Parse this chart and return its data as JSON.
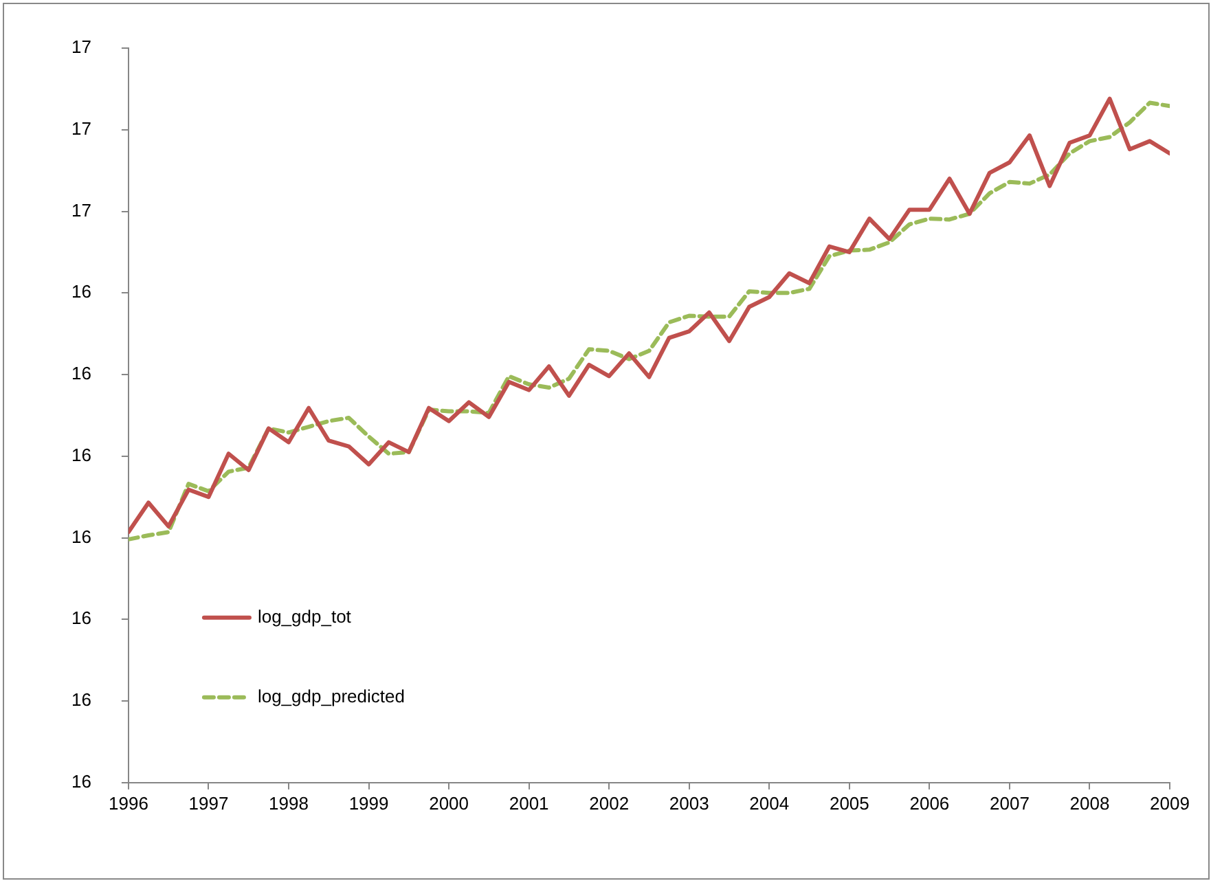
{
  "chart_data": {
    "type": "line",
    "x": [
      1996,
      1996.25,
      1996.5,
      1996.75,
      1997,
      1997.25,
      1997.5,
      1997.75,
      1998,
      1998.25,
      1998.5,
      1998.75,
      1999,
      1999.25,
      1999.5,
      1999.75,
      2000,
      2000.25,
      2000.5,
      2000.75,
      2001,
      2001.25,
      2001.5,
      2001.75,
      2002,
      2002.25,
      2002.5,
      2002.75,
      2003,
      2003.25,
      2003.5,
      2003.75,
      2004,
      2004.25,
      2004.5,
      2004.75,
      2005,
      2005.25,
      2005.5,
      2005.75,
      2006,
      2006.25,
      2006.5,
      2006.75,
      2007,
      2007.25,
      2007.5,
      2007.75,
      2008,
      2008.25,
      2008.5,
      2008.75,
      2009
    ],
    "series": [
      {
        "name": "log_gdp_tot",
        "color": "#c0504d",
        "line_style": "solid",
        "values": [
          16.107,
          16.143,
          16.114,
          16.159,
          16.15,
          16.203,
          16.183,
          16.234,
          16.217,
          16.259,
          16.219,
          16.212,
          16.19,
          16.217,
          16.205,
          16.259,
          16.243,
          16.266,
          16.248,
          16.291,
          16.281,
          16.31,
          16.274,
          16.312,
          16.298,
          16.326,
          16.297,
          16.345,
          16.353,
          16.376,
          16.341,
          16.383,
          16.395,
          16.424,
          16.412,
          16.457,
          16.45,
          16.491,
          16.466,
          16.502,
          16.502,
          16.54,
          16.497,
          16.547,
          16.56,
          16.593,
          16.531,
          16.584,
          16.593,
          16.638,
          16.576,
          16.586,
          16.571
        ]
      },
      {
        "name": "log_gdp_predicted",
        "color": "#9bbb59",
        "line_style": "dashed",
        "values": [
          16.098,
          16.103,
          16.107,
          16.166,
          16.157,
          16.181,
          16.186,
          16.234,
          16.229,
          16.236,
          16.243,
          16.247,
          16.224,
          16.203,
          16.205,
          16.257,
          16.255,
          16.255,
          16.253,
          16.298,
          16.288,
          16.284,
          16.295,
          16.331,
          16.329,
          16.319,
          16.329,
          16.364,
          16.372,
          16.371,
          16.371,
          16.402,
          16.4,
          16.4,
          16.405,
          16.445,
          16.452,
          16.453,
          16.462,
          16.484,
          16.491,
          16.49,
          16.497,
          16.522,
          16.536,
          16.534,
          16.545,
          16.571,
          16.586,
          16.591,
          16.609,
          16.633,
          16.629
        ]
      }
    ],
    "xlim": [
      1996,
      2009
    ],
    "xticks": [
      1996,
      1997,
      1998,
      1999,
      2000,
      2001,
      2002,
      2003,
      2004,
      2005,
      2006,
      2007,
      2008,
      2009
    ],
    "ylim": [
      15.8,
      16.7
    ],
    "yticks": [
      {
        "value": 15.8,
        "label": "16"
      },
      {
        "value": 15.9,
        "label": "16"
      },
      {
        "value": 16.0,
        "label": "16"
      },
      {
        "value": 16.1,
        "label": "16"
      },
      {
        "value": 16.2,
        "label": "16"
      },
      {
        "value": 16.3,
        "label": "16"
      },
      {
        "value": 16.4,
        "label": "16"
      },
      {
        "value": 16.5,
        "label": "17"
      },
      {
        "value": 16.6,
        "label": "17"
      },
      {
        "value": 16.7,
        "label": "17"
      }
    ],
    "grid": false,
    "legend": "bottom left",
    "marker": "none"
  }
}
